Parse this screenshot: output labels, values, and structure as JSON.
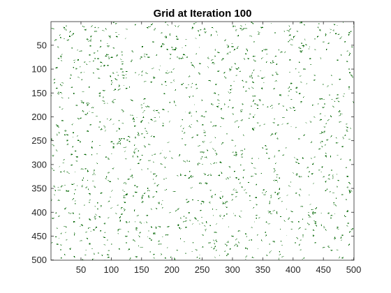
{
  "chart_data": {
    "type": "heatmap",
    "title": "Grid at Iteration 100",
    "xlabel": "",
    "ylabel": "",
    "grid": false,
    "xlim": [
      0.5,
      500.5
    ],
    "ylim": [
      0.5,
      500.5
    ],
    "y_reversed": true,
    "xticks": [
      50,
      100,
      150,
      200,
      250,
      300,
      350,
      400,
      450,
      500
    ],
    "yticks": [
      50,
      100,
      150,
      200,
      250,
      300,
      350,
      400,
      450,
      500
    ],
    "grid_size": [
      500,
      500
    ],
    "iteration": 100,
    "colormap": {
      "0": "#ffffff",
      "1": "#006400"
    },
    "live_cell_fraction": 0.1
  }
}
